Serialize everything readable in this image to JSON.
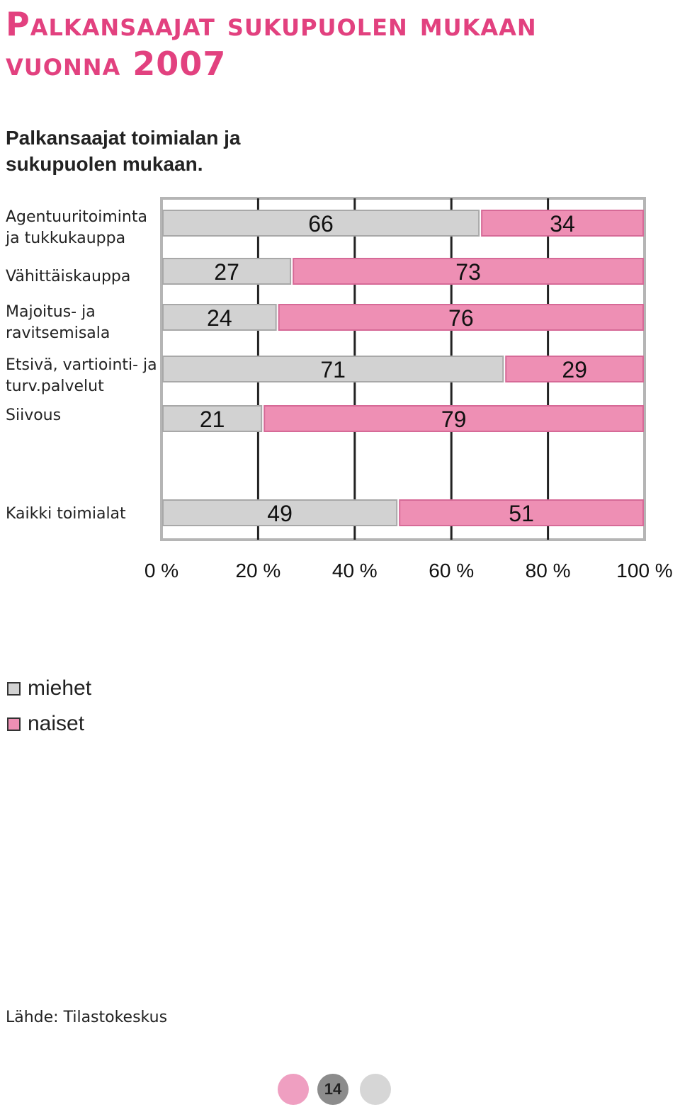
{
  "page": {
    "title": "Palkansaajat sukupuolen mukaan vuonna 2007",
    "subtitle": "Palkansaajat toimialan ja sukupuolen mukaan.",
    "source": "Lähde: Tilastokeskus",
    "page_number": "14"
  },
  "chart_data": {
    "type": "bar",
    "orientation": "horizontal",
    "stacked": true,
    "categories": [
      "Agentuuritoiminta ja tukkukauppa",
      "Vähittäiskauppa",
      "Majoitus- ja ravitsemisala",
      "Etsivä, vartiointi- ja turv.palvelut",
      "Siivous",
      "Kaikki toimialat"
    ],
    "series": [
      {
        "name": "miehet",
        "color": "#d2d2d2",
        "values": [
          66,
          27,
          24,
          71,
          21,
          49
        ]
      },
      {
        "name": "naiset",
        "color": "#ee8fb4",
        "values": [
          34,
          73,
          76,
          29,
          79,
          51
        ]
      }
    ],
    "xlim": [
      0,
      100
    ],
    "xticks": [
      "0 %",
      "20 %",
      "40 %",
      "60 %",
      "80 %",
      "100 %"
    ],
    "grid": true,
    "legend": "bottom-left"
  },
  "colors": {
    "title": "#e2417f",
    "dot_pink": "#ef9fc1",
    "dot_gray": "#d6d6d6",
    "page_badge": "#8c8c8c"
  }
}
